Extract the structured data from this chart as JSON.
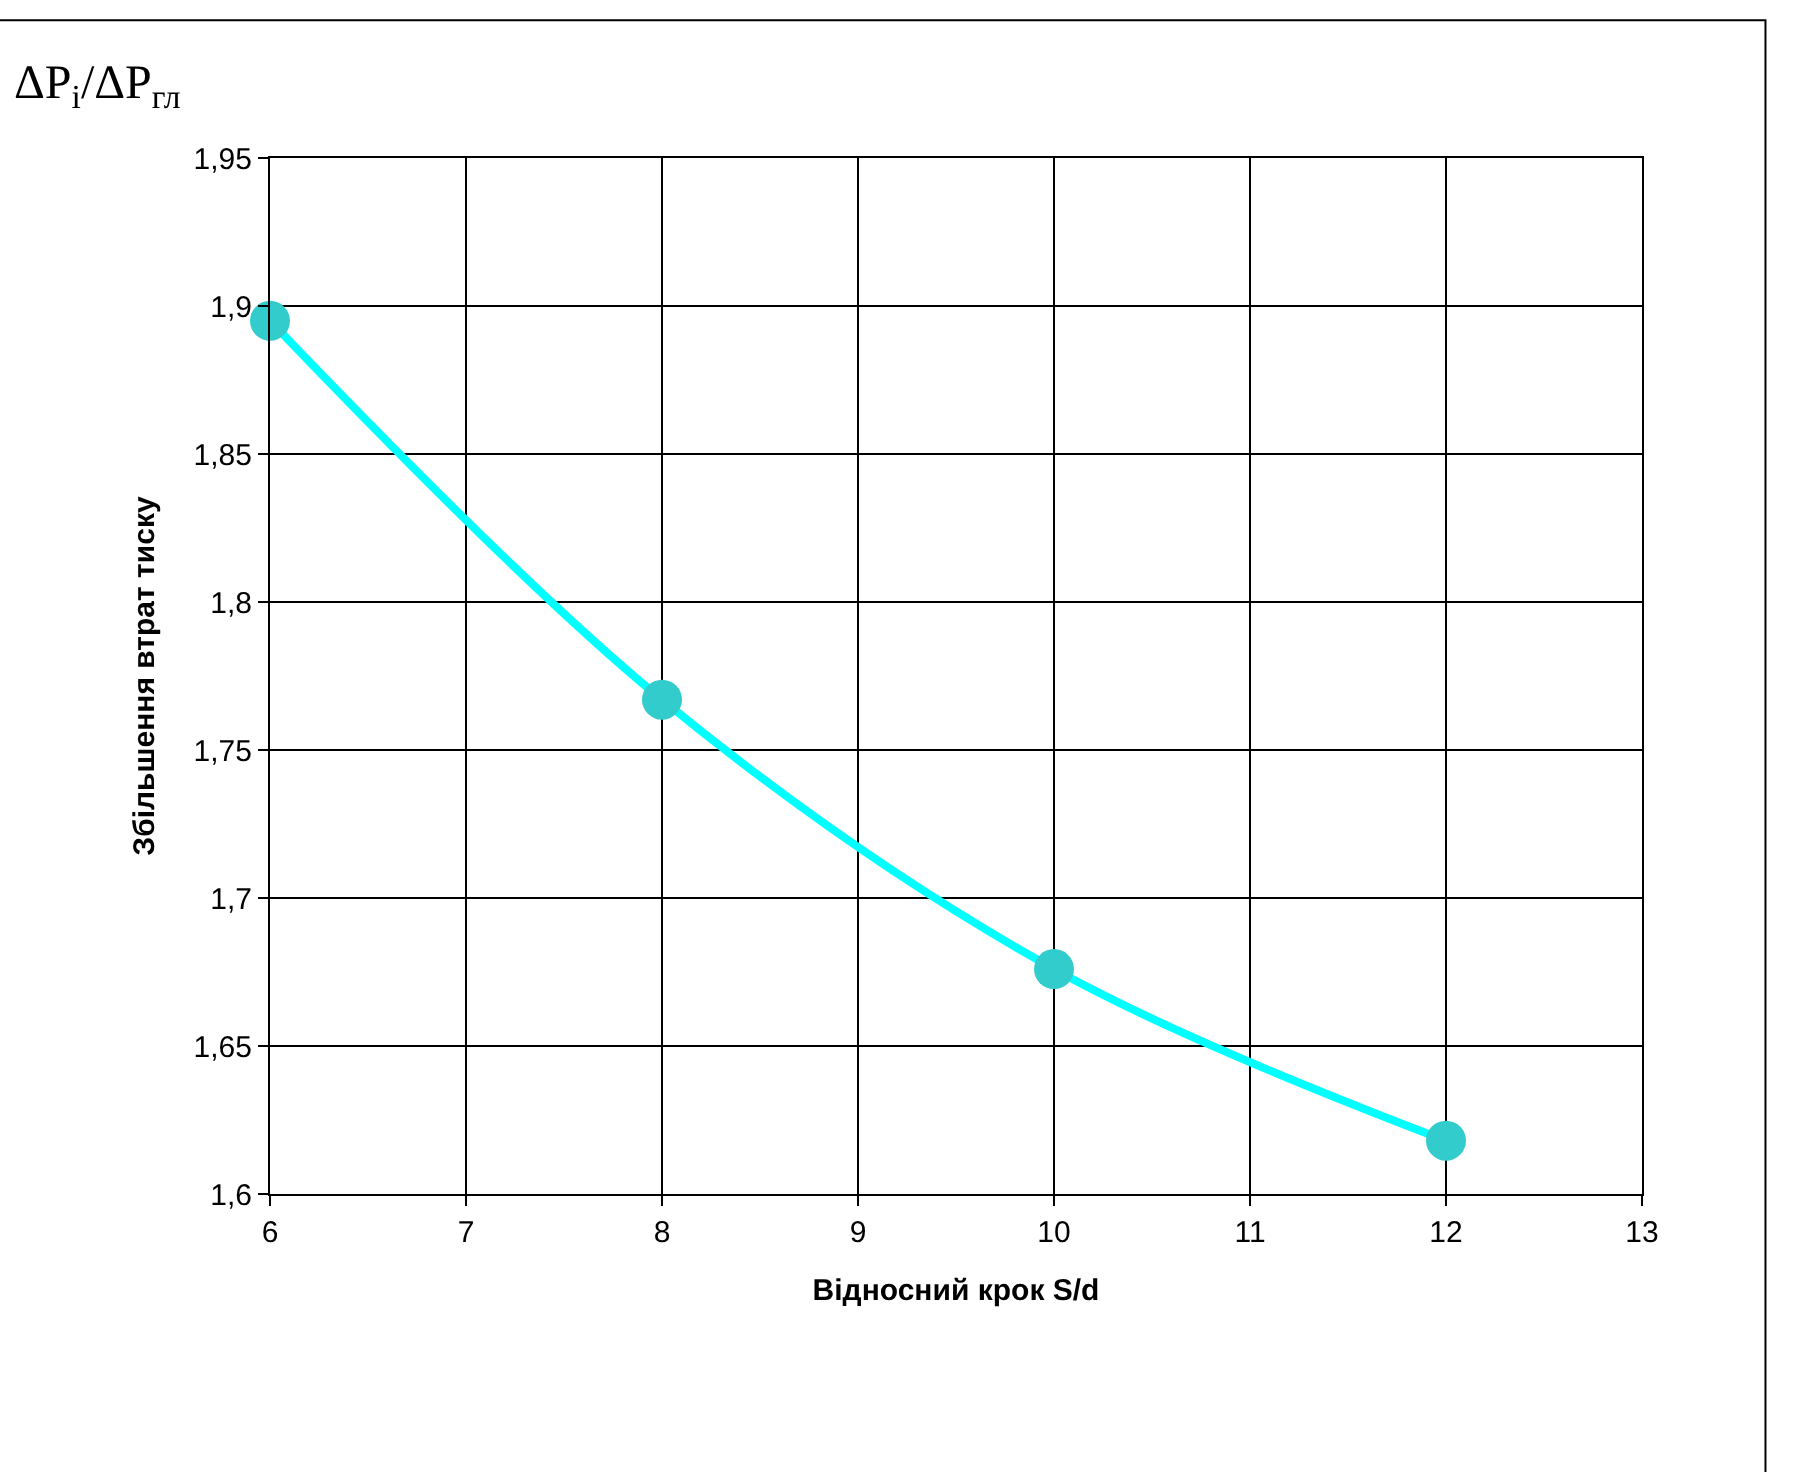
{
  "chart_data": {
    "type": "line",
    "xlabel": "Відносний крок S/d",
    "ylabel": "Збільшення втрат тиску",
    "annotations": [
      "ΔP$_{i}$/ΔP$_{гл}$"
    ],
    "x": [
      6,
      8,
      10,
      12
    ],
    "series": [
      {
        "color": "#00ffff",
        "colors": [
          "#33cccc",
          "#33cccc",
          "#33cccc",
          "#33cccc"
        ],
        "values": [
          1.895,
          1.767,
          1.676,
          1.618
        ]
      }
    ],
    "xlim": [
      6,
      13
    ],
    "xticks": [
      6,
      7,
      8,
      9,
      10,
      11,
      12,
      13
    ],
    "ylim": [
      1.6,
      1.95
    ],
    "yticks": [
      {
        "value": 1.6,
        "label": "1,6"
      },
      {
        "value": 1.65,
        "label": "1,65"
      },
      {
        "value": 1.7,
        "label": "1,7"
      },
      {
        "value": 1.75,
        "label": "1,75"
      },
      {
        "value": 1.8,
        "label": "1,8"
      },
      {
        "value": 1.85,
        "label": "1,85"
      },
      {
        "value": 1.9,
        "label": "1,9"
      },
      {
        "value": 1.95,
        "label": "1,95"
      }
    ],
    "grid": true,
    "marker": "circle",
    "line_style": "solid"
  }
}
